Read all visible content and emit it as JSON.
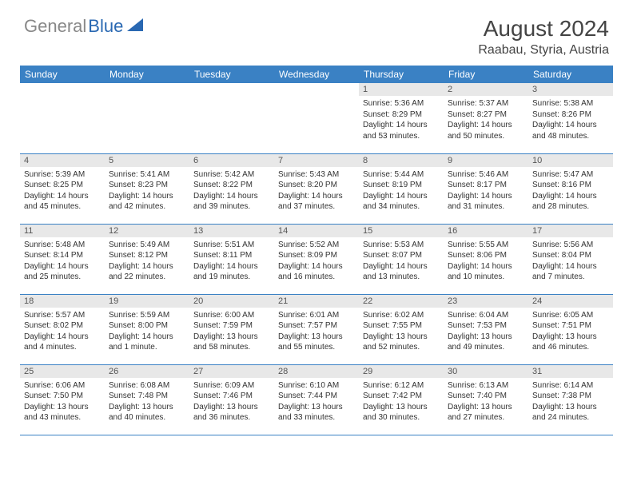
{
  "logo": {
    "text_gray": "General",
    "text_blue": "Blue"
  },
  "title": "August 2024",
  "location": "Raabau, Styria, Austria",
  "colors": {
    "header_bg": "#3a81c4",
    "header_text": "#ffffff",
    "daynum_bg": "#e8e8e8",
    "daynum_text": "#555555",
    "body_text": "#333333",
    "border": "#3a81c4",
    "logo_gray": "#888888",
    "logo_blue": "#2968b2"
  },
  "weekdays": [
    "Sunday",
    "Monday",
    "Tuesday",
    "Wednesday",
    "Thursday",
    "Friday",
    "Saturday"
  ],
  "weeks": [
    [
      null,
      null,
      null,
      null,
      {
        "n": "1",
        "sr": "Sunrise: 5:36 AM",
        "ss": "Sunset: 8:29 PM",
        "dl": "Daylight: 14 hours and 53 minutes."
      },
      {
        "n": "2",
        "sr": "Sunrise: 5:37 AM",
        "ss": "Sunset: 8:27 PM",
        "dl": "Daylight: 14 hours and 50 minutes."
      },
      {
        "n": "3",
        "sr": "Sunrise: 5:38 AM",
        "ss": "Sunset: 8:26 PM",
        "dl": "Daylight: 14 hours and 48 minutes."
      }
    ],
    [
      {
        "n": "4",
        "sr": "Sunrise: 5:39 AM",
        "ss": "Sunset: 8:25 PM",
        "dl": "Daylight: 14 hours and 45 minutes."
      },
      {
        "n": "5",
        "sr": "Sunrise: 5:41 AM",
        "ss": "Sunset: 8:23 PM",
        "dl": "Daylight: 14 hours and 42 minutes."
      },
      {
        "n": "6",
        "sr": "Sunrise: 5:42 AM",
        "ss": "Sunset: 8:22 PM",
        "dl": "Daylight: 14 hours and 39 minutes."
      },
      {
        "n": "7",
        "sr": "Sunrise: 5:43 AM",
        "ss": "Sunset: 8:20 PM",
        "dl": "Daylight: 14 hours and 37 minutes."
      },
      {
        "n": "8",
        "sr": "Sunrise: 5:44 AM",
        "ss": "Sunset: 8:19 PM",
        "dl": "Daylight: 14 hours and 34 minutes."
      },
      {
        "n": "9",
        "sr": "Sunrise: 5:46 AM",
        "ss": "Sunset: 8:17 PM",
        "dl": "Daylight: 14 hours and 31 minutes."
      },
      {
        "n": "10",
        "sr": "Sunrise: 5:47 AM",
        "ss": "Sunset: 8:16 PM",
        "dl": "Daylight: 14 hours and 28 minutes."
      }
    ],
    [
      {
        "n": "11",
        "sr": "Sunrise: 5:48 AM",
        "ss": "Sunset: 8:14 PM",
        "dl": "Daylight: 14 hours and 25 minutes."
      },
      {
        "n": "12",
        "sr": "Sunrise: 5:49 AM",
        "ss": "Sunset: 8:12 PM",
        "dl": "Daylight: 14 hours and 22 minutes."
      },
      {
        "n": "13",
        "sr": "Sunrise: 5:51 AM",
        "ss": "Sunset: 8:11 PM",
        "dl": "Daylight: 14 hours and 19 minutes."
      },
      {
        "n": "14",
        "sr": "Sunrise: 5:52 AM",
        "ss": "Sunset: 8:09 PM",
        "dl": "Daylight: 14 hours and 16 minutes."
      },
      {
        "n": "15",
        "sr": "Sunrise: 5:53 AM",
        "ss": "Sunset: 8:07 PM",
        "dl": "Daylight: 14 hours and 13 minutes."
      },
      {
        "n": "16",
        "sr": "Sunrise: 5:55 AM",
        "ss": "Sunset: 8:06 PM",
        "dl": "Daylight: 14 hours and 10 minutes."
      },
      {
        "n": "17",
        "sr": "Sunrise: 5:56 AM",
        "ss": "Sunset: 8:04 PM",
        "dl": "Daylight: 14 hours and 7 minutes."
      }
    ],
    [
      {
        "n": "18",
        "sr": "Sunrise: 5:57 AM",
        "ss": "Sunset: 8:02 PM",
        "dl": "Daylight: 14 hours and 4 minutes."
      },
      {
        "n": "19",
        "sr": "Sunrise: 5:59 AM",
        "ss": "Sunset: 8:00 PM",
        "dl": "Daylight: 14 hours and 1 minute."
      },
      {
        "n": "20",
        "sr": "Sunrise: 6:00 AM",
        "ss": "Sunset: 7:59 PM",
        "dl": "Daylight: 13 hours and 58 minutes."
      },
      {
        "n": "21",
        "sr": "Sunrise: 6:01 AM",
        "ss": "Sunset: 7:57 PM",
        "dl": "Daylight: 13 hours and 55 minutes."
      },
      {
        "n": "22",
        "sr": "Sunrise: 6:02 AM",
        "ss": "Sunset: 7:55 PM",
        "dl": "Daylight: 13 hours and 52 minutes."
      },
      {
        "n": "23",
        "sr": "Sunrise: 6:04 AM",
        "ss": "Sunset: 7:53 PM",
        "dl": "Daylight: 13 hours and 49 minutes."
      },
      {
        "n": "24",
        "sr": "Sunrise: 6:05 AM",
        "ss": "Sunset: 7:51 PM",
        "dl": "Daylight: 13 hours and 46 minutes."
      }
    ],
    [
      {
        "n": "25",
        "sr": "Sunrise: 6:06 AM",
        "ss": "Sunset: 7:50 PM",
        "dl": "Daylight: 13 hours and 43 minutes."
      },
      {
        "n": "26",
        "sr": "Sunrise: 6:08 AM",
        "ss": "Sunset: 7:48 PM",
        "dl": "Daylight: 13 hours and 40 minutes."
      },
      {
        "n": "27",
        "sr": "Sunrise: 6:09 AM",
        "ss": "Sunset: 7:46 PM",
        "dl": "Daylight: 13 hours and 36 minutes."
      },
      {
        "n": "28",
        "sr": "Sunrise: 6:10 AM",
        "ss": "Sunset: 7:44 PM",
        "dl": "Daylight: 13 hours and 33 minutes."
      },
      {
        "n": "29",
        "sr": "Sunrise: 6:12 AM",
        "ss": "Sunset: 7:42 PM",
        "dl": "Daylight: 13 hours and 30 minutes."
      },
      {
        "n": "30",
        "sr": "Sunrise: 6:13 AM",
        "ss": "Sunset: 7:40 PM",
        "dl": "Daylight: 13 hours and 27 minutes."
      },
      {
        "n": "31",
        "sr": "Sunrise: 6:14 AM",
        "ss": "Sunset: 7:38 PM",
        "dl": "Daylight: 13 hours and 24 minutes."
      }
    ]
  ]
}
